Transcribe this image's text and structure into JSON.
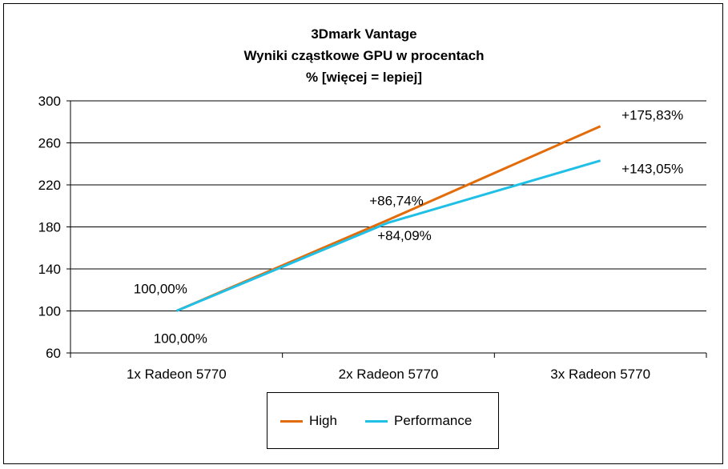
{
  "chart_data": {
    "type": "line",
    "title": [
      "3Dmark Vantage",
      "Wyniki cząstkowe GPU w procentach",
      "% [więcej = lepiej]"
    ],
    "categories": [
      "1x Radeon 5770",
      "2x Radeon 5770",
      "3x Radeon 5770"
    ],
    "ylim": [
      60,
      300
    ],
    "yticks": [
      60,
      100,
      140,
      180,
      220,
      260,
      300
    ],
    "grid": true,
    "legend_position": "bottom",
    "series": [
      {
        "name": "High",
        "color": "#E36C0A",
        "values": [
          100.0,
          186.74,
          275.83
        ],
        "labels": [
          "100,00%",
          "+86,74%",
          "+175,83%"
        ]
      },
      {
        "name": "Performance",
        "color": "#1FBFE6",
        "values": [
          100.0,
          184.09,
          243.05
        ],
        "labels": [
          "100,00%",
          "+84,09%",
          "+143,05%"
        ]
      }
    ]
  }
}
